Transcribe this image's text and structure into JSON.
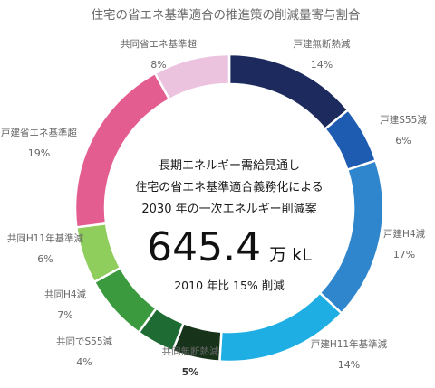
{
  "chart_data": {
    "type": "pie",
    "title": "住宅の省エネ基準適合の推進策の削減量寄与割合",
    "series": [
      {
        "name": "戸建無断熱減",
        "value": 14,
        "label": "14%",
        "color": "#1c2a5e"
      },
      {
        "name": "戸建S55減",
        "value": 6,
        "label": "6%",
        "color": "#1d5cb0"
      },
      {
        "name": "戸建H4減",
        "value": 17,
        "label": "17%",
        "color": "#2f86cc"
      },
      {
        "name": "戸建H11年基準減",
        "value": 14,
        "label": "14%",
        "color": "#1eaee3"
      },
      {
        "name": "共同無断熱減",
        "value": 5,
        "label": "5%",
        "color": "#173319"
      },
      {
        "name": "共同でS55減",
        "value": 4,
        "label": "4%",
        "color": "#1f6b34"
      },
      {
        "name": "共同H4減",
        "value": 7,
        "label": "7%",
        "color": "#3b9a3e"
      },
      {
        "name": "共同H11年基準減",
        "value": 6,
        "label": "6%",
        "color": "#8fcd5c"
      },
      {
        "name": "戸建省エネ基準超",
        "value": 19,
        "label": "19%",
        "color": "#e35d90"
      },
      {
        "name": "共同省エネ基準超",
        "value": 8,
        "label": "8%",
        "color": "#ecc3df"
      }
    ],
    "center": {
      "line1": "長期エネルギー需給見通し",
      "line2": "住宅の省エネ基準適合義務化による",
      "line3": "2030 年の一次エネルギー削減案",
      "value": "645.4",
      "unit": "万 kL",
      "line4": "2010 年比 15% 削減"
    }
  }
}
